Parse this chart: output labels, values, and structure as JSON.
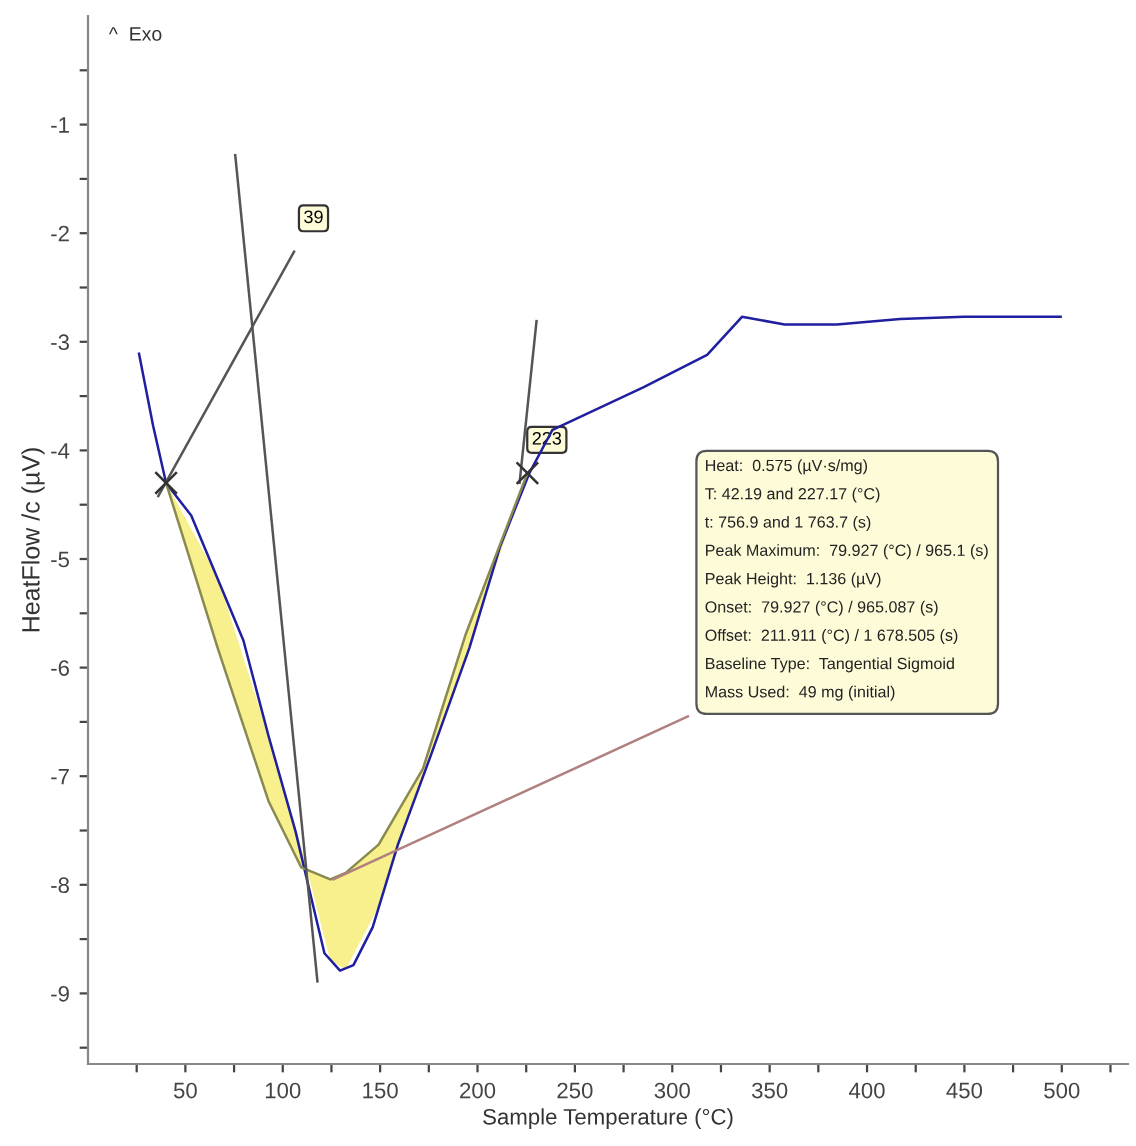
{
  "chart_data": {
    "type": "line",
    "xlabel": "Sample Temperature (°C)",
    "ylabel": "HeatFlow /c (µV)",
    "xlim": [
      0,
      534
    ],
    "ylim": [
      -9.65,
      0
    ],
    "xticks": [
      {
        "value": 25,
        "label": null
      },
      50,
      {
        "value": 75,
        "label": null
      },
      100,
      {
        "value": 125,
        "label": null
      },
      150,
      {
        "value": 175,
        "label": null
      },
      200,
      {
        "value": 225,
        "label": null
      },
      250,
      {
        "value": 275,
        "label": null
      },
      300,
      {
        "value": 325,
        "label": null
      },
      350,
      {
        "value": 375,
        "label": null
      },
      400,
      {
        "value": 425,
        "label": null
      },
      450,
      {
        "value": 475,
        "label": null
      },
      500,
      {
        "value": 525,
        "label": null
      }
    ],
    "yticks": [
      {
        "value": -9.5,
        "label": null
      },
      -9,
      {
        "value": -8.5,
        "label": null
      },
      -8,
      {
        "value": -7.5,
        "label": null
      },
      -7,
      {
        "value": -6.5,
        "label": null
      },
      -6,
      {
        "value": -5.5,
        "label": null
      },
      -5,
      {
        "value": -4.5,
        "label": null
      },
      -4,
      {
        "value": -3.5,
        "label": null
      },
      -3,
      {
        "value": -2.5,
        "label": null
      },
      -2,
      {
        "value": -1.5,
        "label": null
      },
      -1,
      {
        "value": -0.5,
        "label": null
      }
    ],
    "grid": false,
    "series": [
      {
        "color": "#1f1fa0",
        "x": [
          26.2,
          33.4,
          40.1,
          53.0,
          79.8,
          92.7,
          106.6,
          114.5,
          121.4,
          129.4,
          136.3,
          146.2,
          159.1,
          176.0,
          195.8,
          211.7,
          226.6,
          238.5,
          285.1,
          317.9,
          335.8,
          357.7,
          384.5,
          417.0,
          449.8,
          499.4
        ],
        "values": [
          -3.11,
          -3.77,
          -4.3,
          -4.6,
          -5.75,
          -6.63,
          -7.51,
          -8.11,
          -8.63,
          -8.79,
          -8.74,
          -8.39,
          -7.63,
          -6.81,
          -5.82,
          -4.88,
          -4.21,
          -3.81,
          -3.42,
          -3.12,
          -2.77,
          -2.84,
          -2.84,
          -2.79,
          -2.77,
          -2.77
        ]
      },
      {
        "color": "#8a8a50",
        "x": [
          40.1,
          66.6,
          92.7,
          109.5,
          124.4,
          132.3,
          149.2,
          172.0,
          193.8,
          225.6
        ],
        "values": [
          -4.3,
          -5.82,
          -7.23,
          -7.84,
          -7.95,
          -7.89,
          -7.63,
          -6.93,
          -5.7,
          -4.21
        ],
        "lower": [
          -4.3,
          -5.82,
          -7.23,
          -7.84,
          -7.95,
          -7.89,
          -7.63,
          -6.93,
          -5.7,
          -4.21
        ],
        "upper": [
          -4.3,
          -5.17,
          -6.63,
          -7.65,
          -8.7,
          -8.78,
          -8.2,
          -7.0,
          -5.9,
          -4.21
        ]
      },
      {
        "color": "#555555",
        "x": [
          75.6,
          117.8
        ],
        "values": [
          -1.28,
          -8.89
        ]
      },
      {
        "color": "#555555",
        "x": [
          36.1,
          105.8
        ],
        "values": [
          -4.42,
          -2.17
        ]
      },
      {
        "color": "#555555",
        "x": [
          221.6,
          230.3
        ],
        "values": [
          -4.3,
          -2.81
        ]
      },
      {
        "color": "#b08080",
        "x": [
          126,
          308
        ],
        "values": [
          -7.95,
          -6.45
        ]
      },
      {
        "type": "scatter",
        "color": "#333333",
        "marker": "cross",
        "x": [
          40.1,
          225.6
        ],
        "values": [
          -4.3,
          -4.21
        ]
      }
    ],
    "annotations": [
      "^  Exo",
      {
        "text": "39",
        "x": 105.8,
        "y": -2.17
      },
      {
        "text": "223",
        "x": 225.6,
        "y": -4.21
      },
      "Heat:  0.575 (µV·s/mg)",
      "T: 42.19 and 227.17 (°C)",
      "t: 756.9 and 1 763.7 (s)",
      "Peak Maximum:  79.927 (°C) / 965.1 (s)",
      "Peak Height:  1.136 (µV)",
      "Onset:  79.927 (°C) / 965.087 (s)",
      "Offset:  211.911 (°C) / 1 678.505 (s)",
      "Baseline Type:  Tangential Sigmoid",
      "Mass Used:  49 mg (initial)"
    ]
  }
}
